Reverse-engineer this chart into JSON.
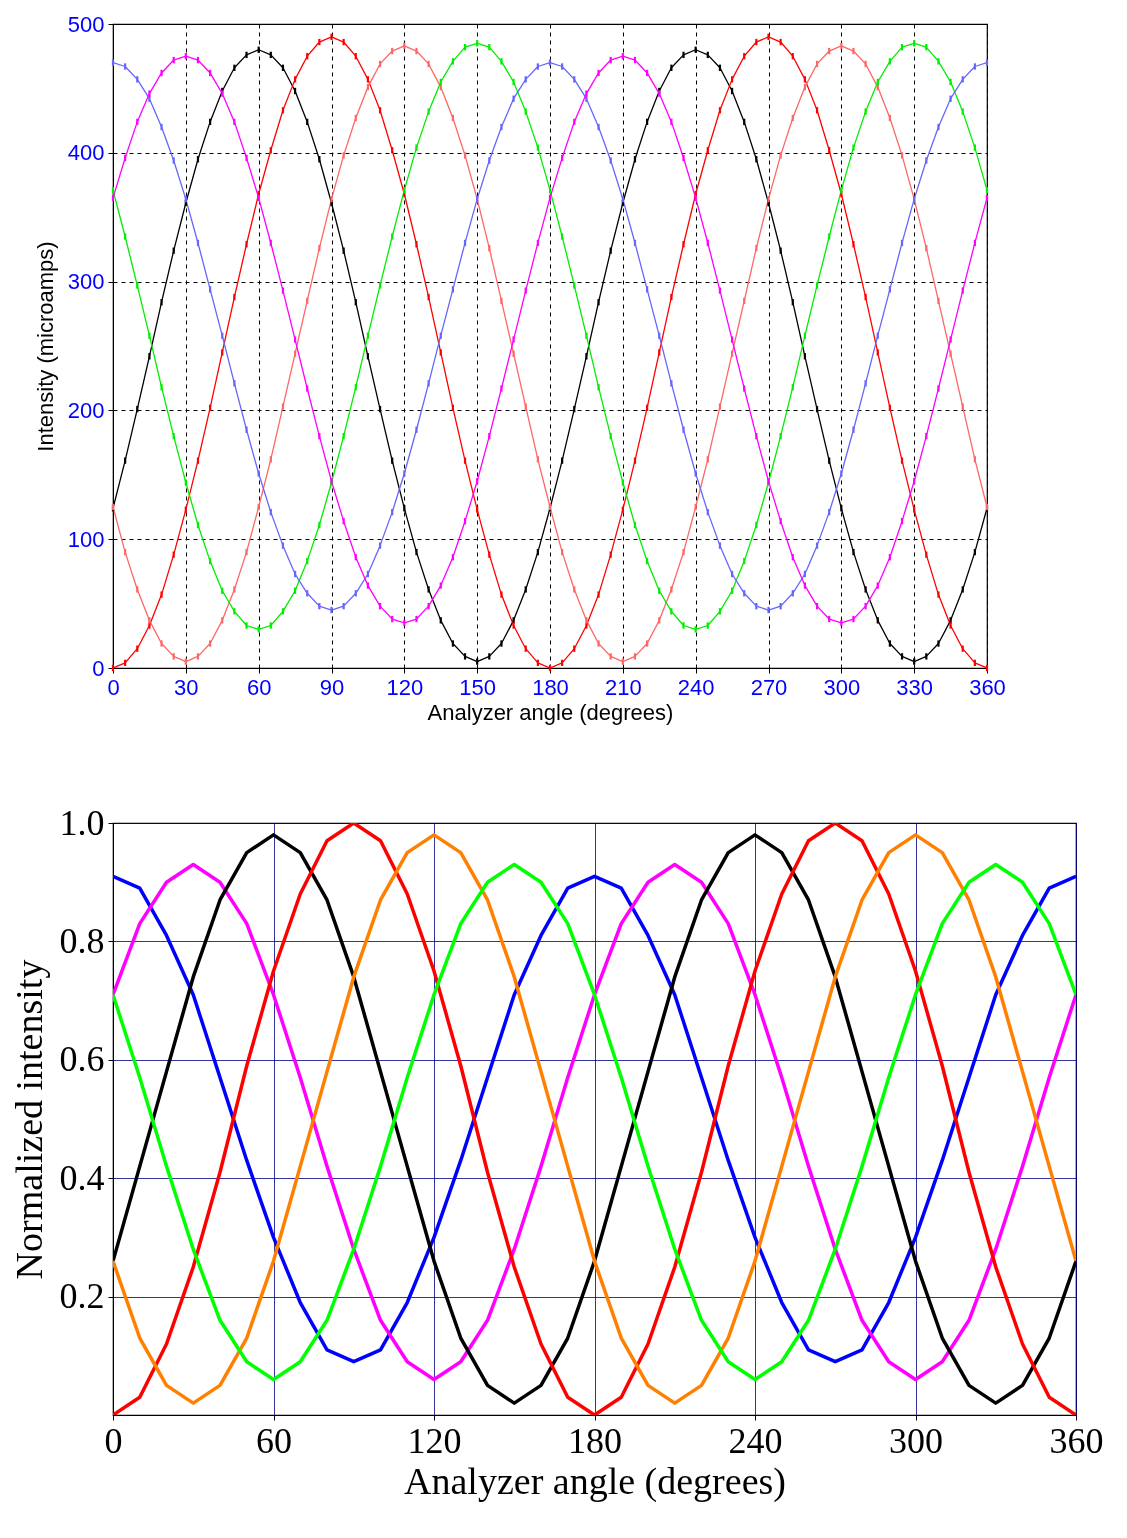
{
  "chart_data": [
    {
      "type": "line",
      "xlabel": "Analyzer angle (degrees)",
      "ylabel": "Intensity (microamps)",
      "xlim": [
        0,
        360
      ],
      "ylim": [
        0,
        500
      ],
      "xticks": [
        0,
        30,
        60,
        90,
        120,
        150,
        180,
        210,
        240,
        270,
        300,
        330,
        360
      ],
      "yticks": [
        0,
        100,
        200,
        300,
        400,
        500
      ],
      "grid": true,
      "marker": "square",
      "line_style": "solid",
      "x": [
        0,
        5,
        10,
        15,
        20,
        25,
        30,
        35,
        40,
        45,
        50,
        55,
        60,
        65,
        70,
        75,
        80,
        85,
        90,
        95,
        100,
        105,
        110,
        115,
        120,
        125,
        130,
        135,
        140,
        145,
        150,
        155,
        160,
        165,
        170,
        175,
        180,
        185,
        190,
        195,
        200,
        205,
        210,
        215,
        220,
        225,
        230,
        235,
        240,
        245,
        250,
        255,
        260,
        265,
        270,
        275,
        280,
        285,
        290,
        295,
        300,
        305,
        310,
        315,
        320,
        325,
        330,
        335,
        340,
        345,
        350,
        355,
        360
      ],
      "series": [
        {
          "color": "#000000",
          "values": [
            124,
            161,
            201,
            242,
            284,
            324,
            361,
            395,
            424,
            448,
            466,
            476,
            480,
            476,
            466,
            448,
            424,
            395,
            361,
            324,
            284,
            242,
            201,
            161,
            124,
            90,
            61,
            37,
            19,
            9,
            5,
            9,
            19,
            37,
            61,
            90,
            124,
            161,
            201,
            242,
            284,
            324,
            361,
            395,
            424,
            448,
            466,
            476,
            480,
            476,
            466,
            448,
            424,
            395,
            361,
            324,
            284,
            242,
            201,
            161,
            124,
            90,
            61,
            37,
            19,
            9,
            5,
            9,
            19,
            37,
            61,
            90,
            124
          ]
        },
        {
          "color": "#ff0000",
          "values": [
            0,
            4,
            15,
            33,
            57,
            88,
            123,
            161,
            202,
            245,
            288,
            329,
            368,
            402,
            433,
            457,
            475,
            486,
            490,
            486,
            475,
            457,
            433,
            402,
            368,
            329,
            288,
            245,
            202,
            161,
            123,
            88,
            57,
            33,
            15,
            4,
            0,
            4,
            15,
            33,
            57,
            88,
            123,
            161,
            202,
            245,
            288,
            329,
            368,
            402,
            433,
            457,
            475,
            486,
            490,
            486,
            475,
            457,
            433,
            402,
            368,
            329,
            288,
            245,
            202,
            161,
            123,
            88,
            57,
            33,
            15,
            4,
            0
          ]
        },
        {
          "color": "#ff6666",
          "values": [
            125,
            90,
            61,
            37,
            19,
            9,
            5,
            9,
            19,
            37,
            61,
            90,
            125,
            162,
            203,
            244,
            285,
            326,
            364,
            398,
            427,
            451,
            469,
            479,
            483,
            479,
            469,
            451,
            427,
            398,
            364,
            326,
            285,
            244,
            203,
            162,
            125,
            90,
            61,
            37,
            19,
            9,
            5,
            9,
            19,
            37,
            61,
            90,
            125,
            162,
            203,
            244,
            285,
            326,
            364,
            398,
            427,
            451,
            469,
            479,
            483,
            479,
            469,
            451,
            427,
            398,
            364,
            326,
            285,
            244,
            203,
            162,
            125
          ]
        },
        {
          "color": "#00ee00",
          "values": [
            371,
            335,
            297,
            258,
            218,
            180,
            144,
            111,
            83,
            60,
            44,
            33,
            30,
            33,
            44,
            60,
            83,
            111,
            144,
            180,
            218,
            258,
            297,
            335,
            371,
            404,
            432,
            455,
            471,
            482,
            485,
            482,
            471,
            455,
            432,
            404,
            371,
            335,
            297,
            258,
            218,
            180,
            144,
            111,
            83,
            60,
            44,
            33,
            30,
            33,
            44,
            60,
            83,
            111,
            144,
            180,
            218,
            258,
            297,
            335,
            371,
            404,
            432,
            455,
            471,
            482,
            485,
            482,
            471,
            455,
            432,
            404,
            371
          ]
        },
        {
          "color": "#6666ff",
          "values": [
            470,
            467,
            457,
            442,
            420,
            394,
            364,
            330,
            294,
            258,
            221,
            185,
            151,
            121,
            95,
            73,
            58,
            48,
            45,
            48,
            58,
            73,
            95,
            121,
            151,
            185,
            221,
            258,
            294,
            330,
            364,
            394,
            420,
            442,
            457,
            467,
            470,
            467,
            457,
            442,
            420,
            394,
            364,
            330,
            294,
            258,
            221,
            185,
            151,
            121,
            95,
            73,
            58,
            48,
            45,
            48,
            58,
            73,
            95,
            121,
            151,
            185,
            221,
            258,
            294,
            330,
            364,
            394,
            420,
            442,
            457,
            467,
            470
          ]
        },
        {
          "color": "#ff00ff",
          "values": [
            365,
            396,
            424,
            446,
            462,
            472,
            475,
            472,
            462,
            446,
            424,
            396,
            365,
            330,
            293,
            255,
            217,
            180,
            145,
            114,
            86,
            64,
            48,
            38,
            35,
            38,
            48,
            64,
            86,
            114,
            145,
            180,
            217,
            255,
            293,
            330,
            365,
            396,
            424,
            446,
            462,
            472,
            475,
            472,
            462,
            446,
            424,
            396,
            365,
            330,
            293,
            255,
            217,
            180,
            145,
            114,
            86,
            64,
            48,
            38,
            35,
            38,
            48,
            64,
            86,
            114,
            145,
            180,
            217,
            255,
            293,
            330,
            365
          ]
        }
      ]
    },
    {
      "type": "line",
      "xlabel": "Analyzer angle (degrees)",
      "ylabel": "Normalized intensity",
      "xlim": [
        0,
        360
      ],
      "ylim": [
        0,
        1
      ],
      "xticks": [
        0,
        60,
        120,
        180,
        240,
        300,
        360
      ],
      "yticks": [
        0.2,
        0.4,
        0.6,
        0.8,
        {
          "value": 1,
          "label": "1.0"
        }
      ],
      "grid": true,
      "line_style": "solid",
      "x": [
        0,
        10,
        20,
        30,
        40,
        50,
        60,
        70,
        80,
        90,
        100,
        110,
        120,
        130,
        140,
        150,
        160,
        170,
        180,
        190,
        200,
        210,
        220,
        230,
        240,
        250,
        260,
        270,
        280,
        290,
        300,
        310,
        320,
        330,
        340,
        350,
        360
      ],
      "series": [
        {
          "color": "#0000ff",
          "values": [
            0.91,
            0.89,
            0.81,
            0.71,
            0.57,
            0.43,
            0.3,
            0.19,
            0.11,
            0.09,
            0.11,
            0.19,
            0.3,
            0.43,
            0.57,
            0.71,
            0.81,
            0.89,
            0.91,
            0.89,
            0.81,
            0.71,
            0.57,
            0.43,
            0.3,
            0.19,
            0.11,
            0.09,
            0.11,
            0.19,
            0.3,
            0.43,
            0.57,
            0.71,
            0.81,
            0.89,
            0.91
          ]
        },
        {
          "color": "#ff00ff",
          "values": [
            0.71,
            0.83,
            0.9,
            0.93,
            0.9,
            0.83,
            0.71,
            0.57,
            0.42,
            0.28,
            0.16,
            0.09,
            0.06,
            0.09,
            0.16,
            0.28,
            0.42,
            0.57,
            0.71,
            0.83,
            0.9,
            0.93,
            0.9,
            0.83,
            0.71,
            0.57,
            0.42,
            0.28,
            0.16,
            0.09,
            0.06,
            0.09,
            0.16,
            0.28,
            0.42,
            0.57,
            0.71
          ]
        },
        {
          "color": "#000000",
          "values": [
            0.26,
            0.42,
            0.58,
            0.74,
            0.87,
            0.95,
            0.98,
            0.95,
            0.87,
            0.74,
            0.58,
            0.42,
            0.26,
            0.13,
            0.05,
            0.02,
            0.05,
            0.13,
            0.26,
            0.42,
            0.58,
            0.74,
            0.87,
            0.95,
            0.98,
            0.95,
            0.87,
            0.74,
            0.58,
            0.42,
            0.26,
            0.13,
            0.05,
            0.02,
            0.05,
            0.13,
            0.26
          ]
        },
        {
          "color": "#ff0000",
          "values": [
            0,
            0.03,
            0.12,
            0.25,
            0.41,
            0.59,
            0.75,
            0.88,
            0.97,
            1,
            0.97,
            0.88,
            0.75,
            0.59,
            0.41,
            0.25,
            0.12,
            0.03,
            0,
            0.03,
            0.12,
            0.25,
            0.41,
            0.59,
            0.75,
            0.88,
            0.97,
            1,
            0.97,
            0.88,
            0.75,
            0.59,
            0.41,
            0.25,
            0.12,
            0.03,
            0
          ]
        },
        {
          "color": "#ff8000",
          "values": [
            0.26,
            0.13,
            0.05,
            0.02,
            0.05,
            0.13,
            0.26,
            0.42,
            0.58,
            0.74,
            0.87,
            0.95,
            0.98,
            0.95,
            0.87,
            0.74,
            0.58,
            0.42,
            0.26,
            0.13,
            0.05,
            0.02,
            0.05,
            0.13,
            0.26,
            0.42,
            0.58,
            0.74,
            0.87,
            0.95,
            0.98,
            0.95,
            0.87,
            0.74,
            0.58,
            0.42,
            0.26
          ]
        },
        {
          "color": "#00ff00",
          "values": [
            0.71,
            0.57,
            0.42,
            0.28,
            0.16,
            0.09,
            0.06,
            0.09,
            0.16,
            0.28,
            0.42,
            0.57,
            0.71,
            0.83,
            0.9,
            0.93,
            0.9,
            0.83,
            0.71,
            0.57,
            0.42,
            0.28,
            0.16,
            0.09,
            0.06,
            0.09,
            0.16,
            0.28,
            0.42,
            0.57,
            0.71,
            0.83,
            0.9,
            0.93,
            0.9,
            0.83,
            0.71
          ]
        }
      ]
    }
  ]
}
